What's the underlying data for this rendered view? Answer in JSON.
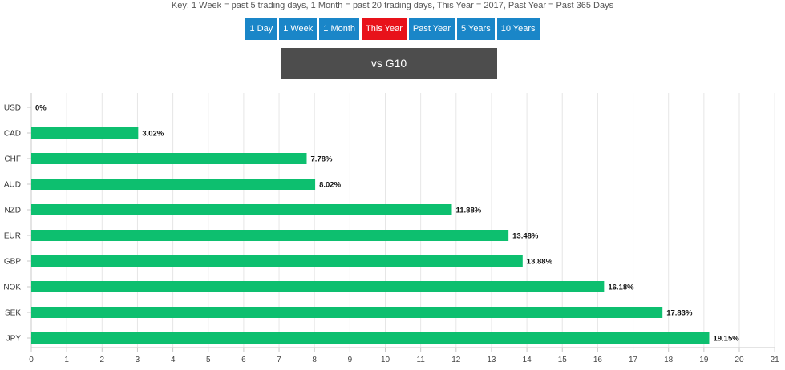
{
  "key_text": "Key: 1 Week = past 5 trading days, 1 Month = past 20 trading days, This Year = 2017, Past Year = Past 365 Days",
  "buttons": [
    {
      "label": "1 Day",
      "active": false
    },
    {
      "label": "1 Week",
      "active": false
    },
    {
      "label": "1 Month",
      "active": false
    },
    {
      "label": "This Year",
      "active": true
    },
    {
      "label": "Past Year",
      "active": false
    },
    {
      "label": "5 Years",
      "active": false
    },
    {
      "label": "10 Years",
      "active": false
    }
  ],
  "group_label": "vs G10",
  "colors": {
    "bar": "#0dbf6f",
    "active_button": "#e8121a",
    "button": "#1a86c8"
  },
  "chart_data": {
    "type": "bar",
    "orientation": "horizontal",
    "categories": [
      "USD",
      "CAD",
      "CHF",
      "AUD",
      "NZD",
      "EUR",
      "GBP",
      "NOK",
      "SEK",
      "JPY"
    ],
    "values": [
      0,
      3.02,
      7.78,
      8.02,
      11.88,
      13.48,
      13.88,
      16.18,
      17.83,
      19.15
    ],
    "data_labels": [
      "0%",
      "3.02%",
      "7.78%",
      "8.02%",
      "11.88%",
      "13.48%",
      "13.88%",
      "16.18%",
      "17.83%",
      "19.15%"
    ],
    "xlim": [
      0,
      21
    ],
    "xticks": [
      "0",
      "1",
      "2",
      "3",
      "4",
      "5",
      "6",
      "7",
      "8",
      "9",
      "10",
      "11",
      "12",
      "13",
      "14",
      "15",
      "16",
      "17",
      "18",
      "19",
      "20",
      "21"
    ],
    "grid": true,
    "title": "",
    "xlabel": "",
    "ylabel": ""
  }
}
